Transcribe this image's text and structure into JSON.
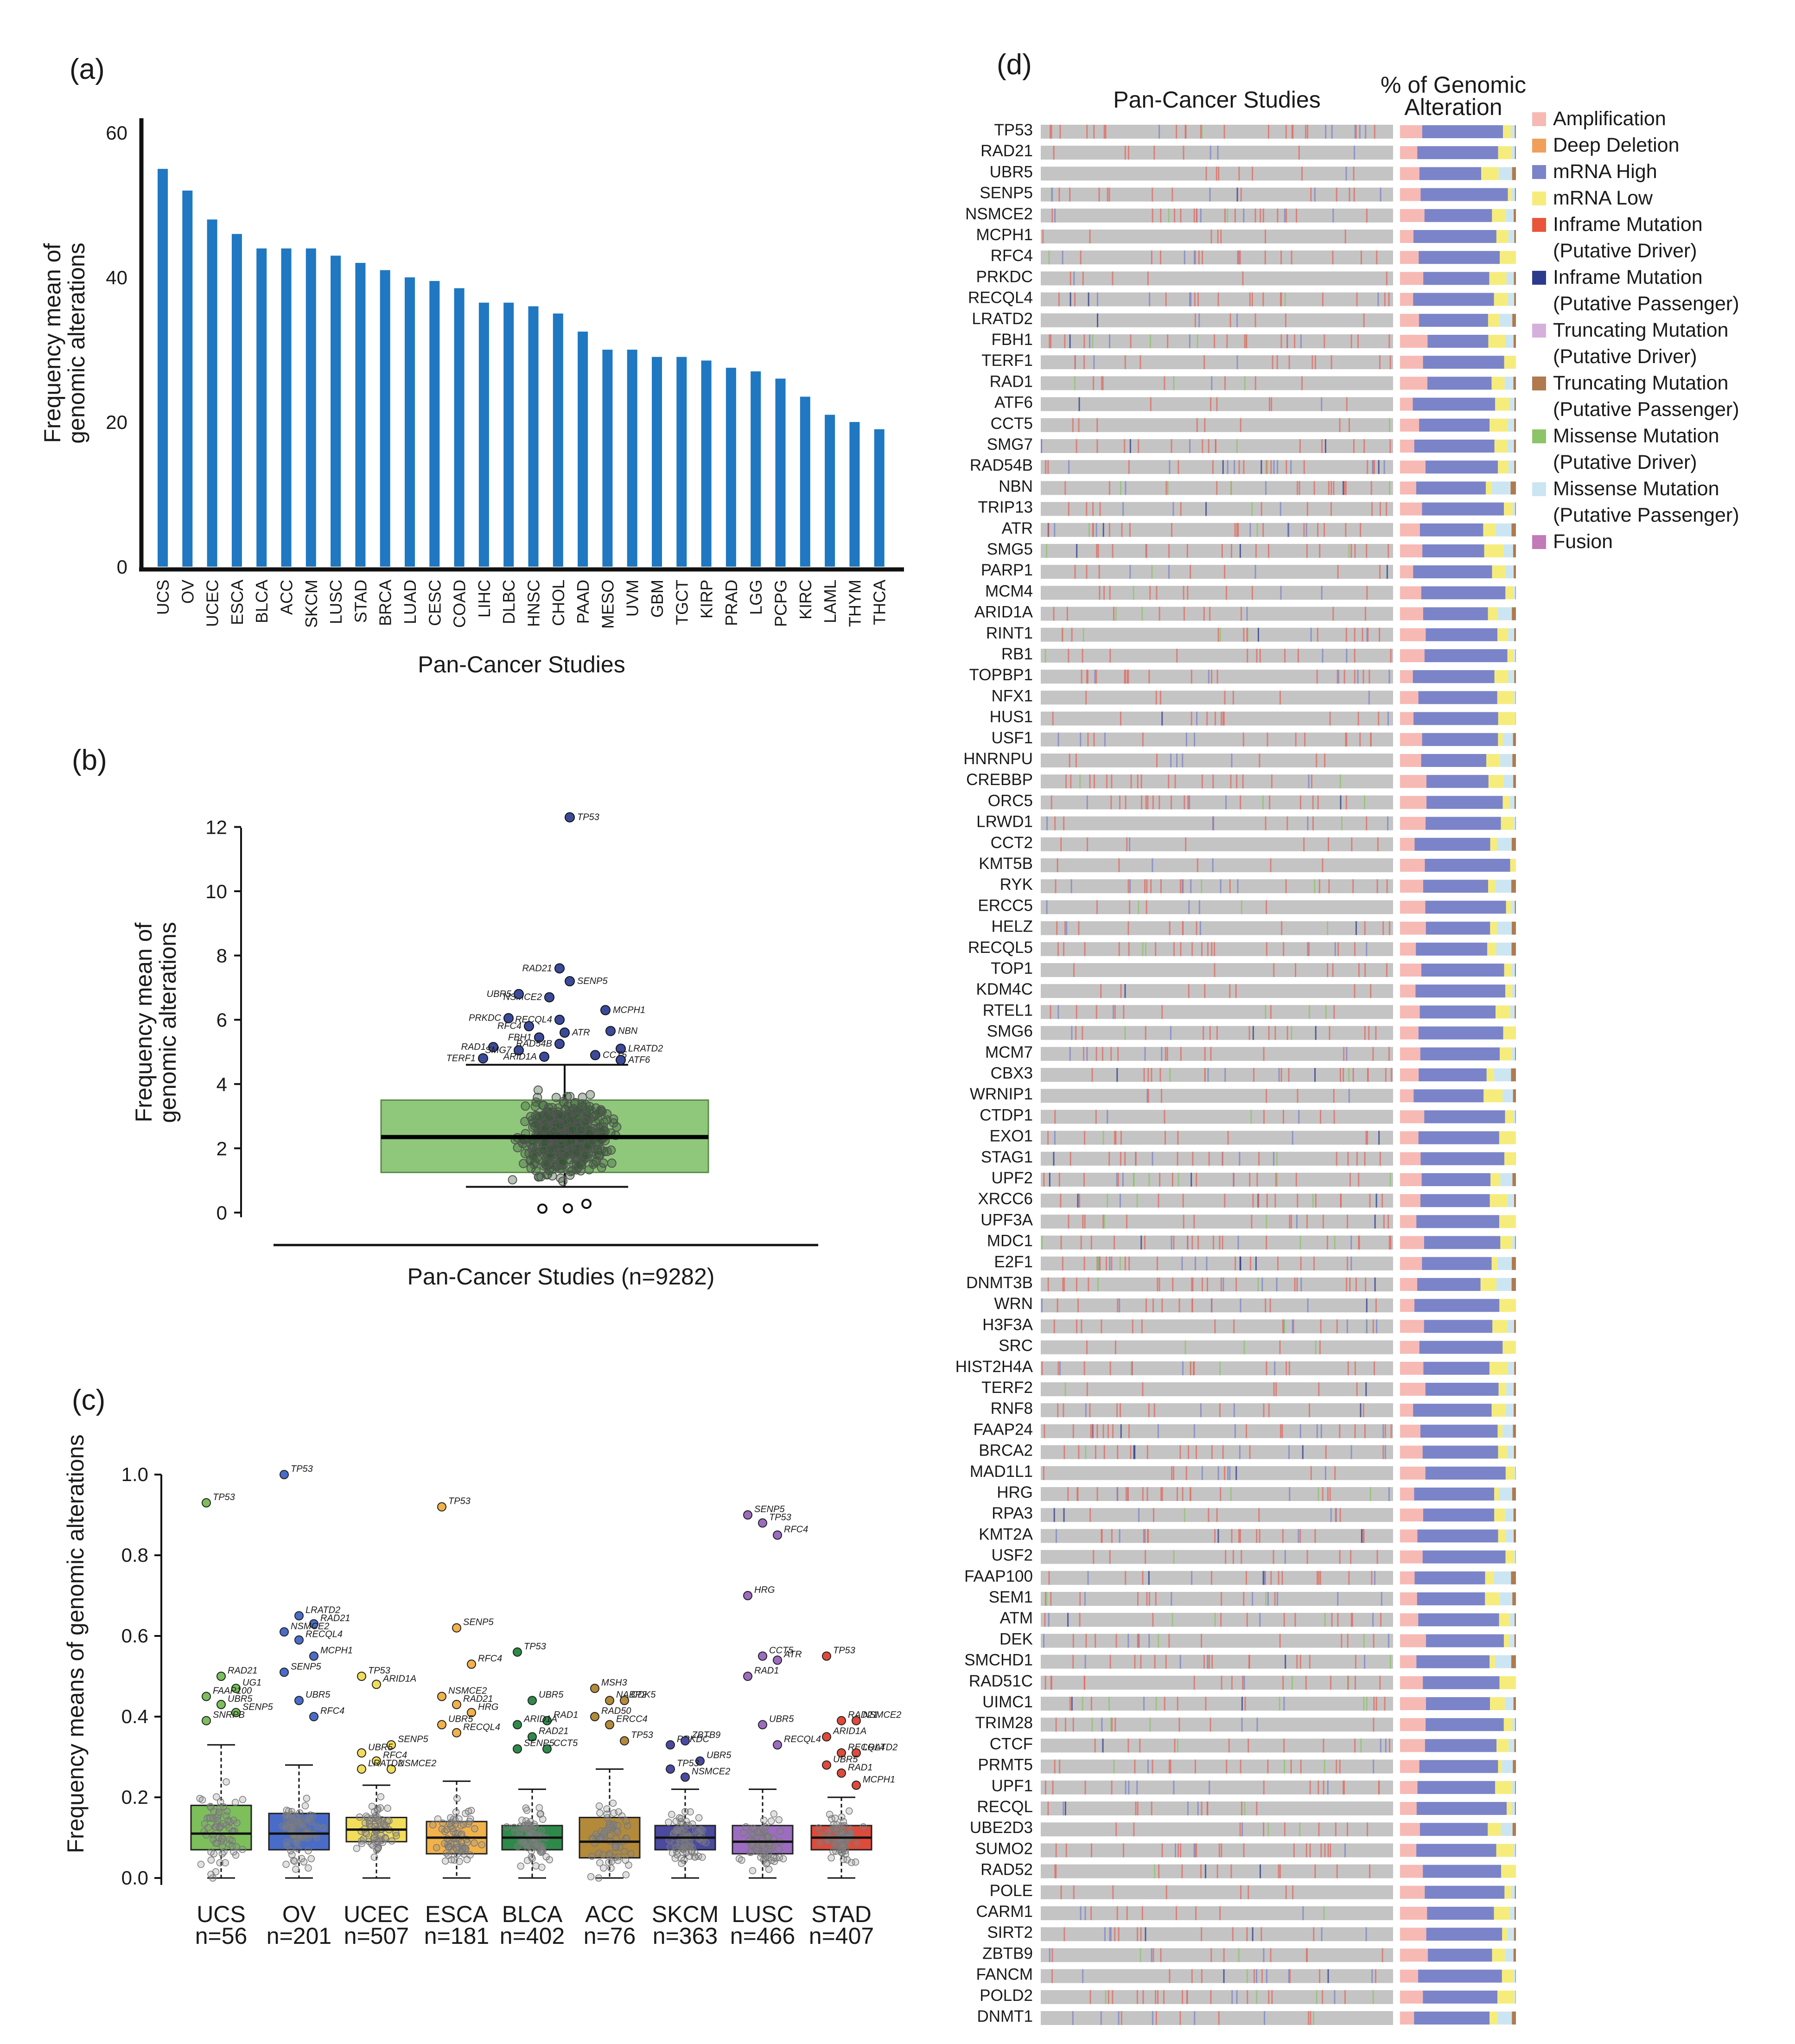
{
  "figure": {
    "panel_labels": [
      "(a)",
      "(b)",
      "(c)",
      "(d)"
    ]
  },
  "colors": {
    "bar_blue": "#1f78c1",
    "box_green": "#8fc87a",
    "dot_navy": "#3b4a9a",
    "grey_track": "#c4c4c4",
    "c_ucs": "#7cbf5b",
    "c_ov": "#4a6cc9",
    "c_ucec": "#f2dd5a",
    "c_esca": "#f2b24a",
    "c_blca": "#2e8a4a",
    "c_acc": "#b38a3a",
    "c_skcm": "#4a4aa0",
    "c_lusc": "#9c6cc0",
    "c_stad": "#e04a3a"
  },
  "chart_data": [
    {
      "id": "a",
      "type": "bar",
      "title": "",
      "xlabel": "Pan-Cancer Studies",
      "ylabel": "Frequency mean of genomic alterations",
      "ylim": [
        0,
        62
      ],
      "yticks": [
        "0",
        "20",
        "40",
        "60"
      ],
      "categories": [
        "UCS",
        "OV",
        "UCEC",
        "ESCA",
        "BLCA",
        "ACC",
        "SKCM",
        "LUSC",
        "STAD",
        "BRCA",
        "LUAD",
        "CESC",
        "COAD",
        "LIHC",
        "DLBC",
        "HNSC",
        "CHOL",
        "PAAD",
        "MESO",
        "UVM",
        "GBM",
        "TGCT",
        "KIRP",
        "PRAD",
        "LGG",
        "PCPG",
        "KIRC",
        "LAML",
        "THYM",
        "THCA"
      ],
      "values": [
        55,
        52,
        48,
        46,
        44,
        44,
        44,
        43,
        42,
        41,
        40,
        39.5,
        38.5,
        36.5,
        36.5,
        36,
        35,
        32.5,
        30,
        30,
        29,
        29,
        28.5,
        27.5,
        27,
        26,
        23.5,
        21,
        20,
        19
      ]
    },
    {
      "id": "b",
      "type": "box",
      "xlabel": "Pan-Cancer Studies (n=9282)",
      "ylabel": "Frequency mean of genomic alterations",
      "ylim": [
        0,
        12.5
      ],
      "yticks": [
        "0",
        "2",
        "4",
        "6",
        "8",
        "10",
        "12"
      ],
      "box": {
        "q1": 1.25,
        "median": 2.35,
        "q3": 3.5,
        "whisker_low": 0.8,
        "whisker_high": 4.6
      },
      "outliers": [
        {
          "gene": "TP53",
          "x": 0.05,
          "y": 12.3
        },
        {
          "gene": "RAD21",
          "x": -0.05,
          "y": 7.6
        },
        {
          "gene": "SENP5",
          "x": 0.05,
          "y": 7.2
        },
        {
          "gene": "NSMCE2",
          "x": -0.15,
          "y": 6.7
        },
        {
          "gene": "UBR5",
          "x": -0.45,
          "y": 6.8
        },
        {
          "gene": "MCPH1",
          "x": 0.4,
          "y": 6.3
        },
        {
          "gene": "RECQL4",
          "x": -0.05,
          "y": 6.0
        },
        {
          "gene": "PRKDC",
          "x": -0.55,
          "y": 6.05
        },
        {
          "gene": "RFC4",
          "x": -0.35,
          "y": 5.8
        },
        {
          "gene": "ATR",
          "x": 0.0,
          "y": 5.6
        },
        {
          "gene": "FBH1",
          "x": -0.25,
          "y": 5.45
        },
        {
          "gene": "NBN",
          "x": 0.45,
          "y": 5.65
        },
        {
          "gene": "RAD54B",
          "x": -0.05,
          "y": 5.25
        },
        {
          "gene": "LRATD2",
          "x": 0.55,
          "y": 5.1
        },
        {
          "gene": "RAD1",
          "x": -0.7,
          "y": 5.15
        },
        {
          "gene": "SMG7",
          "x": -0.45,
          "y": 5.05
        },
        {
          "gene": "CCT5",
          "x": 0.3,
          "y": 4.9
        },
        {
          "gene": "ATF6",
          "x": 0.55,
          "y": 4.75
        },
        {
          "gene": "ARID1A",
          "x": -0.2,
          "y": 4.85
        },
        {
          "gene": "TERF1",
          "x": -0.8,
          "y": 4.8
        }
      ],
      "low_outliers": [
        0.05,
        0.06,
        0.2
      ]
    },
    {
      "id": "c",
      "type": "box",
      "ylabel": "Frequency means of genomic alterations",
      "ylim": [
        0,
        1.0
      ],
      "yticks": [
        "0.0",
        "0.2",
        "0.4",
        "0.6",
        "0.8",
        "1.0"
      ],
      "groups": [
        {
          "name": "UCS",
          "n": "n=56",
          "q1": 0.07,
          "median": 0.11,
          "q3": 0.18,
          "wlo": 0.0,
          "whi": 0.33,
          "outliers": [
            {
              "g": "TP53",
              "y": 0.93
            },
            {
              "g": "RAD21",
              "y": 0.5
            },
            {
              "g": "UG1",
              "y": 0.47
            },
            {
              "g": "FAAP100",
              "y": 0.45
            },
            {
              "g": "UBR5",
              "y": 0.43
            },
            {
              "g": "SENP5",
              "y": 0.41
            },
            {
              "g": "SNRPB",
              "y": 0.39
            }
          ]
        },
        {
          "name": "OV",
          "n": "n=201",
          "q1": 0.07,
          "median": 0.11,
          "q3": 0.16,
          "wlo": 0.0,
          "whi": 0.28,
          "outliers": [
            {
              "g": "TP53",
              "y": 1.0
            },
            {
              "g": "LRATD2",
              "y": 0.65
            },
            {
              "g": "RAD21",
              "y": 0.63
            },
            {
              "g": "NSMCE2",
              "y": 0.61
            },
            {
              "g": "RECQL4",
              "y": 0.59
            },
            {
              "g": "MCPH1",
              "y": 0.55
            },
            {
              "g": "SENP5",
              "y": 0.51
            },
            {
              "g": "UBR5",
              "y": 0.44
            },
            {
              "g": "RFC4",
              "y": 0.4
            }
          ]
        },
        {
          "name": "UCEC",
          "n": "n=507",
          "q1": 0.09,
          "median": 0.12,
          "q3": 0.15,
          "wlo": 0.0,
          "whi": 0.23,
          "outliers": [
            {
              "g": "TP53",
              "y": 0.5
            },
            {
              "g": "ARID1A",
              "y": 0.48
            },
            {
              "g": "SENP5",
              "y": 0.33
            },
            {
              "g": "UBR5",
              "y": 0.31
            },
            {
              "g": "RFC4",
              "y": 0.29
            },
            {
              "g": "NSMCE2",
              "y": 0.27
            },
            {
              "g": "LRATD2",
              "y": 0.27
            }
          ]
        },
        {
          "name": "ESCA",
          "n": "n=181",
          "q1": 0.06,
          "median": 0.1,
          "q3": 0.14,
          "wlo": 0.0,
          "whi": 0.24,
          "outliers": [
            {
              "g": "TP53",
              "y": 0.92
            },
            {
              "g": "SENP5",
              "y": 0.62
            },
            {
              "g": "RFC4",
              "y": 0.53
            },
            {
              "g": "NSMCE2",
              "y": 0.45
            },
            {
              "g": "RAD21",
              "y": 0.43
            },
            {
              "g": "HRG",
              "y": 0.41
            },
            {
              "g": "UBR5",
              "y": 0.38
            },
            {
              "g": "RECQL4",
              "y": 0.36
            }
          ]
        },
        {
          "name": "BLCA",
          "n": "n=402",
          "q1": 0.07,
          "median": 0.1,
          "q3": 0.13,
          "wlo": 0.0,
          "whi": 0.22,
          "outliers": [
            {
              "g": "TP53",
              "y": 0.56
            },
            {
              "g": "UBR5",
              "y": 0.44
            },
            {
              "g": "RAD1",
              "y": 0.39
            },
            {
              "g": "ARID1A",
              "y": 0.38
            },
            {
              "g": "RAD21",
              "y": 0.35
            },
            {
              "g": "CCT5",
              "y": 0.32
            },
            {
              "g": "SENP5",
              "y": 0.32
            }
          ]
        },
        {
          "name": "ACC",
          "n": "n=76",
          "q1": 0.05,
          "median": 0.09,
          "q3": 0.15,
          "wlo": 0.0,
          "whi": 0.27,
          "outliers": [
            {
              "g": "MSH3",
              "y": 0.47
            },
            {
              "g": "NABP2",
              "y": 0.44
            },
            {
              "g": "CDK5",
              "y": 0.44
            },
            {
              "g": "RAD50",
              "y": 0.4
            },
            {
              "g": "ERCC4",
              "y": 0.38
            },
            {
              "g": "TP53",
              "y": 0.34
            }
          ]
        },
        {
          "name": "SKCM",
          "n": "n=363",
          "q1": 0.07,
          "median": 0.1,
          "q3": 0.13,
          "wlo": 0.0,
          "whi": 0.22,
          "outliers": [
            {
              "g": "PRKDC",
              "y": 0.33
            },
            {
              "g": "ZBTB9",
              "y": 0.34
            },
            {
              "g": "UBR5",
              "y": 0.29
            },
            {
              "g": "TP53",
              "y": 0.27
            },
            {
              "g": "NSMCE2",
              "y": 0.25
            }
          ]
        },
        {
          "name": "LUSC",
          "n": "n=466",
          "q1": 0.06,
          "median": 0.09,
          "q3": 0.13,
          "wlo": 0.0,
          "whi": 0.22,
          "outliers": [
            {
              "g": "SENP5",
              "y": 0.9
            },
            {
              "g": "TP53",
              "y": 0.88
            },
            {
              "g": "RFC4",
              "y": 0.85
            },
            {
              "g": "HRG",
              "y": 0.7
            },
            {
              "g": "CCT5",
              "y": 0.55
            },
            {
              "g": "ATR",
              "y": 0.54
            },
            {
              "g": "RAD1",
              "y": 0.5
            },
            {
              "g": "UBR5",
              "y": 0.38
            },
            {
              "g": "RECQL4",
              "y": 0.33
            }
          ]
        },
        {
          "name": "STAD",
          "n": "n=407",
          "q1": 0.07,
          "median": 0.1,
          "q3": 0.13,
          "wlo": 0.0,
          "whi": 0.2,
          "outliers": [
            {
              "g": "TP53",
              "y": 0.55
            },
            {
              "g": "RAD21",
              "y": 0.39
            },
            {
              "g": "NSMCE2",
              "y": 0.39
            },
            {
              "g": "ARID1A",
              "y": 0.35
            },
            {
              "g": "RECQL4",
              "y": 0.31
            },
            {
              "g": "LRATD2",
              "y": 0.31
            },
            {
              "g": "UBR5",
              "y": 0.28
            },
            {
              "g": "RAD1",
              "y": 0.26
            },
            {
              "g": "MCPH1",
              "y": 0.23
            }
          ]
        }
      ]
    },
    {
      "id": "d",
      "type": "oncoprint",
      "title": "Pan-Cancer Studies",
      "bar_title": "% of Genomic Alteration",
      "genes": [
        "TP53",
        "RAD21",
        "UBR5",
        "SENP5",
        "NSMCE2",
        "MCPH1",
        "RFC4",
        "PRKDC",
        "RECQL4",
        "LRATD2",
        "FBH1",
        "TERF1",
        "RAD1",
        "ATF6",
        "CCT5",
        "SMG7",
        "RAD54B",
        "NBN",
        "TRIP13",
        "ATR",
        "SMG5",
        "PARP1",
        "MCM4",
        "ARID1A",
        "RINT1",
        "RB1",
        "TOPBP1",
        "NFX1",
        "HUS1",
        "USF1",
        "HNRNPU",
        "CREBBP",
        "ORC5",
        "LRWD1",
        "CCT2",
        "KMT5B",
        "RYK",
        "ERCC5",
        "HELZ",
        "RECQL5",
        "TOP1",
        "KDM4C",
        "RTEL1",
        "SMG6",
        "MCM7",
        "CBX3",
        "WRNIP1",
        "CTDP1",
        "EXO1",
        "STAG1",
        "UPF2",
        "XRCC6",
        "UPF3A",
        "MDC1",
        "E2F1",
        "DNMT3B",
        "WRN",
        "H3F3A",
        "SRC",
        "HIST2H4A",
        "TERF2",
        "RNF8",
        "FAAP24",
        "BRCA2",
        "MAD1L1",
        "HRG",
        "RPA3",
        "KMT2A",
        "USF2",
        "FAAP100",
        "SEM1",
        "ATM",
        "DEK",
        "SMCHD1",
        "RAD51C",
        "UIMC1",
        "TRIM28",
        "CTCF",
        "PRMT5",
        "UPF1",
        "RECQL",
        "UBE2D3",
        "SUMO2",
        "RAD52",
        "POLE",
        "CARM1",
        "SIRT2",
        "ZBTB9",
        "FANCM",
        "POLD2",
        "DNMT1"
      ],
      "legend": [
        {
          "label": "Amplification",
          "color": "#f7b9b4"
        },
        {
          "label": "Deep Deletion",
          "color": "#f0a05a"
        },
        {
          "label": "mRNA High",
          "color": "#7b84c8"
        },
        {
          "label": "mRNA Low",
          "color": "#f6ec7c"
        },
        {
          "label": "Inframe Mutation",
          "sub": "(Putative Driver)",
          "color": "#e8553a"
        },
        {
          "label": "Inframe Mutation",
          "sub": "(Putative Passenger)",
          "color": "#2d3a8c"
        },
        {
          "label": "Truncating Mutation",
          "sub": "(Putative Driver)",
          "color": "#d6b0dc"
        },
        {
          "label": "Truncating Mutation",
          "sub": "(Putative Passenger)",
          "color": "#b07a4e"
        },
        {
          "label": "Missense Mutation",
          "sub": "(Putative Driver)",
          "color": "#8dc46a"
        },
        {
          "label": "Missense Mutation",
          "sub": "(Putative Passenger)",
          "color": "#cbe6f2"
        },
        {
          "label": "Fusion",
          "color": "#c27ab8"
        }
      ]
    }
  ]
}
